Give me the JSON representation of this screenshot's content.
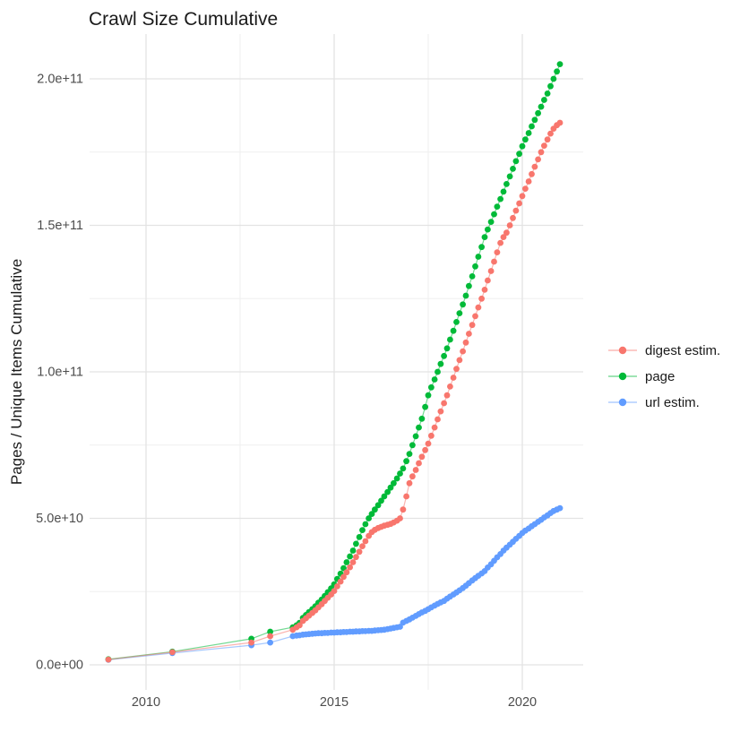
{
  "title": "Crawl Size Cumulative",
  "axes": {
    "y_label": "Pages / Unique Items Cumulative",
    "x_tick_labels": [
      "2010",
      "2015",
      "2020"
    ],
    "y_tick_labels_top_to_bottom": [
      "2.0e+11",
      "1.5e+11",
      "1.0e+11",
      "5.0e+10",
      "0.0e+00"
    ]
  },
  "legend": {
    "items": [
      {
        "label": "digest estim.",
        "color": "#F8766D"
      },
      {
        "label": "page",
        "color": "#00BA38"
      },
      {
        "label": "url estim.",
        "color": "#619CFF"
      }
    ]
  },
  "colors": {
    "background": "#ffffff",
    "grid_major": "#e3e3e3",
    "grid_minor": "#efefef",
    "tick_text": "#4d4d4d",
    "text": "#1a1a1a"
  },
  "chart_data": {
    "type": "scatter",
    "title": "Crawl Size Cumulative",
    "xlabel": "",
    "ylabel": "Pages / Unique Items Cumulative",
    "x_range_years": [
      2008.4,
      2021.7
    ],
    "y_range": [
      0,
      215000000000.0
    ],
    "x_major_ticks": [
      2010,
      2015,
      2020
    ],
    "x_minor_gridlines": [
      2012.5,
      2017.5
    ],
    "y_major_ticks_billions": [
      0,
      50,
      100,
      150,
      200
    ],
    "y_minor_gridlines_billions": [
      25,
      75,
      125,
      175
    ],
    "value_unit": 1000000000,
    "grid": "major+minor light gray on white",
    "legend_position": "right",
    "series": [
      {
        "id": "digest-estim",
        "name": "digest estim.",
        "color": "#F8766D",
        "points_year_billions": [
          [
            2009.0,
            1.8
          ],
          [
            2010.7,
            4.3
          ],
          [
            2012.8,
            7.6
          ],
          [
            2013.3,
            9.8
          ],
          [
            2013.9,
            12.0
          ],
          [
            2014.0,
            12.8
          ],
          [
            2014.08,
            13.5
          ],
          [
            2014.17,
            15.0
          ],
          [
            2014.25,
            15.9
          ],
          [
            2014.33,
            16.8
          ],
          [
            2014.42,
            17.7
          ],
          [
            2014.5,
            18.6
          ],
          [
            2014.58,
            19.6
          ],
          [
            2014.67,
            20.7
          ],
          [
            2014.75,
            21.8
          ],
          [
            2014.83,
            22.9
          ],
          [
            2014.92,
            24.0
          ],
          [
            2015.0,
            25.2
          ],
          [
            2015.08,
            26.8
          ],
          [
            2015.17,
            28.4
          ],
          [
            2015.25,
            30.0
          ],
          [
            2015.33,
            31.6
          ],
          [
            2015.42,
            33.3
          ],
          [
            2015.5,
            35.0
          ],
          [
            2015.58,
            36.8
          ],
          [
            2015.67,
            38.6
          ],
          [
            2015.75,
            40.5
          ],
          [
            2015.83,
            42.2
          ],
          [
            2015.92,
            44.0
          ],
          [
            2016.0,
            45.3
          ],
          [
            2016.08,
            46.1
          ],
          [
            2016.17,
            46.7
          ],
          [
            2016.25,
            47.1
          ],
          [
            2016.33,
            47.5
          ],
          [
            2016.42,
            47.8
          ],
          [
            2016.5,
            48.1
          ],
          [
            2016.58,
            48.6
          ],
          [
            2016.67,
            49.2
          ],
          [
            2016.75,
            50.0
          ],
          [
            2016.83,
            53.0
          ],
          [
            2016.92,
            57.5
          ],
          [
            2017.0,
            62.0
          ],
          [
            2017.08,
            64.3
          ],
          [
            2017.17,
            66.5
          ],
          [
            2017.25,
            68.8
          ],
          [
            2017.33,
            71.0
          ],
          [
            2017.42,
            73.3
          ],
          [
            2017.5,
            75.5
          ],
          [
            2017.58,
            78.2
          ],
          [
            2017.67,
            81.0
          ],
          [
            2017.75,
            83.8
          ],
          [
            2017.83,
            86.5
          ],
          [
            2017.92,
            89.3
          ],
          [
            2018.0,
            92.0
          ],
          [
            2018.08,
            95.0
          ],
          [
            2018.17,
            98.0
          ],
          [
            2018.25,
            101.0
          ],
          [
            2018.33,
            104.0
          ],
          [
            2018.42,
            107.0
          ],
          [
            2018.5,
            110.0
          ],
          [
            2018.58,
            113.0
          ],
          [
            2018.67,
            116.0
          ],
          [
            2018.75,
            119.0
          ],
          [
            2018.83,
            122.0
          ],
          [
            2018.92,
            125.0
          ],
          [
            2019.0,
            128.0
          ],
          [
            2019.08,
            131.2
          ],
          [
            2019.17,
            134.4
          ],
          [
            2019.25,
            137.6
          ],
          [
            2019.33,
            140.8
          ],
          [
            2019.42,
            144.0
          ],
          [
            2019.5,
            146.0
          ],
          [
            2019.58,
            147.5
          ],
          [
            2019.67,
            150.0
          ],
          [
            2019.75,
            152.5
          ],
          [
            2019.83,
            155.0
          ],
          [
            2019.92,
            157.5
          ],
          [
            2020.0,
            160.0
          ],
          [
            2020.08,
            162.5
          ],
          [
            2020.17,
            165.0
          ],
          [
            2020.25,
            167.5
          ],
          [
            2020.33,
            170.0
          ],
          [
            2020.42,
            172.5
          ],
          [
            2020.5,
            175.0
          ],
          [
            2020.58,
            177.2
          ],
          [
            2020.67,
            179.3
          ],
          [
            2020.75,
            181.3
          ],
          [
            2020.83,
            183.0
          ],
          [
            2020.92,
            184.2
          ],
          [
            2021.0,
            185.0
          ]
        ]
      },
      {
        "id": "page",
        "name": "page",
        "color": "#00BA38",
        "points_year_billions": [
          [
            2009.0,
            1.9
          ],
          [
            2010.7,
            4.5
          ],
          [
            2012.8,
            8.9
          ],
          [
            2013.3,
            11.3
          ],
          [
            2013.9,
            12.8
          ],
          [
            2014.0,
            13.5
          ],
          [
            2014.08,
            14.3
          ],
          [
            2014.17,
            16.0
          ],
          [
            2014.25,
            17.0
          ],
          [
            2014.33,
            18.0
          ],
          [
            2014.42,
            19.0
          ],
          [
            2014.5,
            20.0
          ],
          [
            2014.58,
            21.2
          ],
          [
            2014.67,
            22.3
          ],
          [
            2014.75,
            23.5
          ],
          [
            2014.83,
            24.8
          ],
          [
            2014.92,
            26.1
          ],
          [
            2015.0,
            27.5
          ],
          [
            2015.08,
            29.3
          ],
          [
            2015.17,
            31.1
          ],
          [
            2015.25,
            33.0
          ],
          [
            2015.33,
            35.0
          ],
          [
            2015.42,
            37.0
          ],
          [
            2015.5,
            39.0
          ],
          [
            2015.58,
            41.3
          ],
          [
            2015.67,
            43.6
          ],
          [
            2015.75,
            46.0
          ],
          [
            2015.83,
            48.0
          ],
          [
            2015.92,
            50.0
          ],
          [
            2016.0,
            51.5
          ],
          [
            2016.08,
            53.0
          ],
          [
            2016.17,
            54.5
          ],
          [
            2016.25,
            56.0
          ],
          [
            2016.33,
            57.5
          ],
          [
            2016.42,
            59.0
          ],
          [
            2016.5,
            60.5
          ],
          [
            2016.58,
            62.0
          ],
          [
            2016.67,
            63.6
          ],
          [
            2016.75,
            65.3
          ],
          [
            2016.83,
            67.0
          ],
          [
            2016.92,
            69.5
          ],
          [
            2017.0,
            72.0
          ],
          [
            2017.08,
            75.0
          ],
          [
            2017.17,
            78.0
          ],
          [
            2017.25,
            81.0
          ],
          [
            2017.33,
            84.0
          ],
          [
            2017.42,
            88.0
          ],
          [
            2017.5,
            92.0
          ],
          [
            2017.58,
            94.7
          ],
          [
            2017.67,
            97.4
          ],
          [
            2017.75,
            100.0
          ],
          [
            2017.83,
            102.7
          ],
          [
            2017.92,
            105.4
          ],
          [
            2018.0,
            108.0
          ],
          [
            2018.08,
            111.0
          ],
          [
            2018.17,
            114.0
          ],
          [
            2018.25,
            117.0
          ],
          [
            2018.33,
            120.0
          ],
          [
            2018.42,
            123.0
          ],
          [
            2018.5,
            126.0
          ],
          [
            2018.58,
            129.3
          ],
          [
            2018.67,
            132.6
          ],
          [
            2018.75,
            136.0
          ],
          [
            2018.83,
            139.3
          ],
          [
            2018.92,
            142.6
          ],
          [
            2019.0,
            146.0
          ],
          [
            2019.08,
            148.6
          ],
          [
            2019.17,
            151.2
          ],
          [
            2019.25,
            153.8
          ],
          [
            2019.33,
            156.4
          ],
          [
            2019.42,
            159.0
          ],
          [
            2019.5,
            161.5
          ],
          [
            2019.58,
            164.1
          ],
          [
            2019.67,
            166.7
          ],
          [
            2019.75,
            169.3
          ],
          [
            2019.83,
            171.9
          ],
          [
            2019.92,
            174.4
          ],
          [
            2020.0,
            177.0
          ],
          [
            2020.08,
            179.3
          ],
          [
            2020.17,
            181.5
          ],
          [
            2020.25,
            183.8
          ],
          [
            2020.33,
            186.0
          ],
          [
            2020.42,
            188.3
          ],
          [
            2020.5,
            190.5
          ],
          [
            2020.58,
            192.8
          ],
          [
            2020.67,
            195.0
          ],
          [
            2020.75,
            197.5
          ],
          [
            2020.83,
            200.0
          ],
          [
            2020.92,
            202.5
          ],
          [
            2021.0,
            205.0
          ]
        ]
      },
      {
        "id": "url-estim",
        "name": "url estim.",
        "color": "#619CFF",
        "points_year_billions": [
          [
            2009.0,
            1.7
          ],
          [
            2010.7,
            4.0
          ],
          [
            2012.8,
            6.7
          ],
          [
            2013.3,
            7.6
          ],
          [
            2013.9,
            9.8
          ],
          [
            2014.0,
            10.0
          ],
          [
            2014.08,
            10.1
          ],
          [
            2014.17,
            10.3
          ],
          [
            2014.25,
            10.4
          ],
          [
            2014.33,
            10.5
          ],
          [
            2014.42,
            10.6
          ],
          [
            2014.5,
            10.7
          ],
          [
            2014.58,
            10.8
          ],
          [
            2014.67,
            10.8
          ],
          [
            2014.75,
            10.9
          ],
          [
            2014.83,
            10.9
          ],
          [
            2014.92,
            11.0
          ],
          [
            2015.0,
            11.0
          ],
          [
            2015.08,
            11.1
          ],
          [
            2015.17,
            11.1
          ],
          [
            2015.25,
            11.2
          ],
          [
            2015.33,
            11.2
          ],
          [
            2015.42,
            11.3
          ],
          [
            2015.5,
            11.3
          ],
          [
            2015.58,
            11.4
          ],
          [
            2015.67,
            11.4
          ],
          [
            2015.75,
            11.5
          ],
          [
            2015.83,
            11.5
          ],
          [
            2015.92,
            11.6
          ],
          [
            2016.0,
            11.6
          ],
          [
            2016.08,
            11.7
          ],
          [
            2016.17,
            11.8
          ],
          [
            2016.25,
            11.9
          ],
          [
            2016.33,
            12.0
          ],
          [
            2016.42,
            12.2
          ],
          [
            2016.5,
            12.4
          ],
          [
            2016.58,
            12.6
          ],
          [
            2016.67,
            12.8
          ],
          [
            2016.75,
            13.0
          ],
          [
            2016.83,
            14.4
          ],
          [
            2016.92,
            15.0
          ],
          [
            2017.0,
            15.5
          ],
          [
            2017.08,
            16.1
          ],
          [
            2017.17,
            16.7
          ],
          [
            2017.25,
            17.3
          ],
          [
            2017.33,
            17.9
          ],
          [
            2017.42,
            18.4
          ],
          [
            2017.5,
            19.0
          ],
          [
            2017.58,
            19.6
          ],
          [
            2017.67,
            20.2
          ],
          [
            2017.75,
            20.8
          ],
          [
            2017.83,
            21.3
          ],
          [
            2017.92,
            21.8
          ],
          [
            2018.0,
            22.6
          ],
          [
            2018.08,
            23.3
          ],
          [
            2018.17,
            24.0
          ],
          [
            2018.25,
            24.7
          ],
          [
            2018.33,
            25.4
          ],
          [
            2018.42,
            26.2
          ],
          [
            2018.5,
            27.0
          ],
          [
            2018.58,
            27.9
          ],
          [
            2018.67,
            28.8
          ],
          [
            2018.75,
            29.6
          ],
          [
            2018.83,
            30.4
          ],
          [
            2018.92,
            31.2
          ],
          [
            2019.0,
            32.0
          ],
          [
            2019.08,
            33.2
          ],
          [
            2019.17,
            34.3
          ],
          [
            2019.25,
            35.5
          ],
          [
            2019.33,
            36.7
          ],
          [
            2019.42,
            37.8
          ],
          [
            2019.5,
            39.0
          ],
          [
            2019.58,
            40.0
          ],
          [
            2019.67,
            41.0
          ],
          [
            2019.75,
            42.0
          ],
          [
            2019.83,
            43.0
          ],
          [
            2019.92,
            44.0
          ],
          [
            2020.0,
            45.0
          ],
          [
            2020.08,
            45.8
          ],
          [
            2020.17,
            46.5
          ],
          [
            2020.25,
            47.3
          ],
          [
            2020.33,
            48.0
          ],
          [
            2020.42,
            48.8
          ],
          [
            2020.5,
            49.5
          ],
          [
            2020.58,
            50.3
          ],
          [
            2020.67,
            51.0
          ],
          [
            2020.75,
            51.8
          ],
          [
            2020.83,
            52.5
          ],
          [
            2020.92,
            53.0
          ],
          [
            2021.0,
            53.5
          ]
        ]
      }
    ]
  }
}
